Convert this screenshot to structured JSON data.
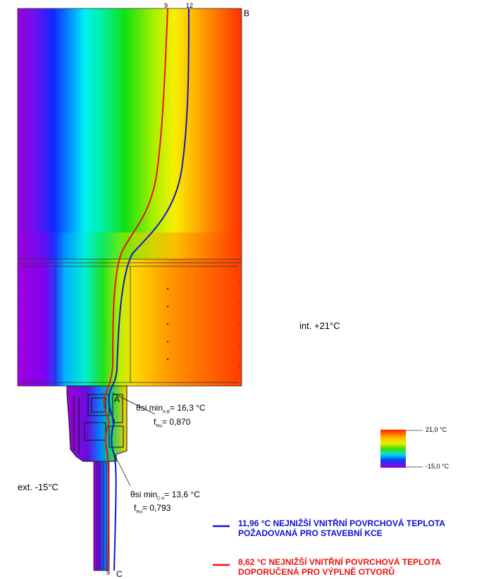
{
  "iso_top_left": "9",
  "iso_top_right": "12",
  "iso_bottom": "9",
  "point_b": "B",
  "point_a": "A",
  "point_c": "C",
  "interior": "int. +21°C",
  "exterior": "ext. -15°C",
  "theta_symbol": "θ",
  "point_ab": {
    "theta_label": "si min",
    "theta_sub": "A-B",
    "theta_value": "= 16,3 °C",
    "f_label": "f",
    "f_sub": "Rsi",
    "f_value": "= 0,870"
  },
  "point_ca": {
    "theta_label": "si min",
    "theta_sub": "C-A",
    "theta_value": "= 13,6 °C",
    "f_label": "f",
    "f_sub": "Rsi",
    "f_value": "= 0,793"
  },
  "scale": {
    "max_label": "21,0 °C",
    "min_label": "-15,0 °C"
  },
  "legend": [
    {
      "color": "#1010d0",
      "line1": "11,96 °C NEJNIŽŠÍ VNITŘNÍ POVRCHOVÁ TEPLOTA",
      "line2": "POŽADOVANÁ PRO STAVEBNÍ KCE"
    },
    {
      "color": "#ee1111",
      "line1": "8,62 °C NEJNIŽŠÍ VNITŘNÍ POVRCHOVÁ TEPLOTA",
      "line2": "DOPORUČENÁ PRO VÝPLNĚ OTVORŮ"
    }
  ]
}
